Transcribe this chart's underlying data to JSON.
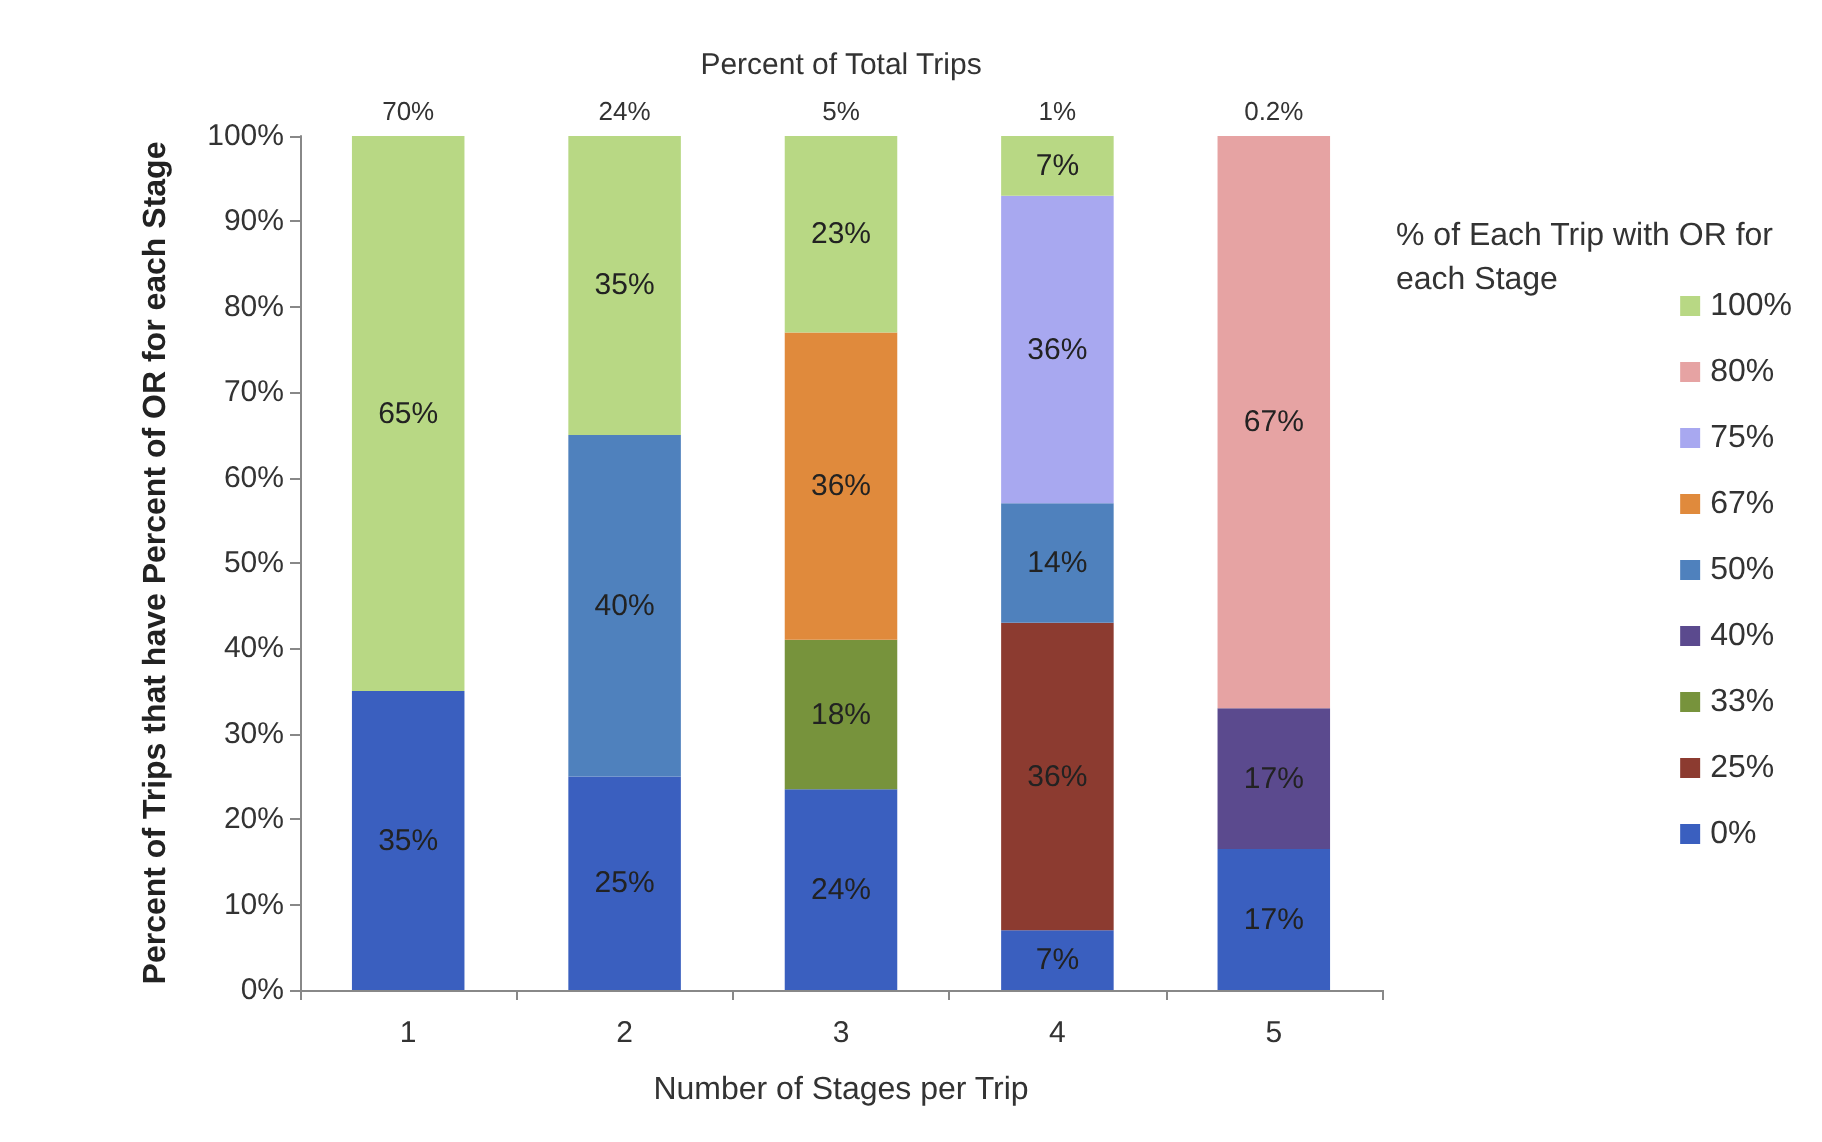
{
  "chart_data": {
    "type": "bar",
    "stacked": true,
    "xlabel": "Number of Stages per Trip",
    "ylabel": "Percent of Trips that have Percent of OR for each Stage",
    "x2label": "Percent of Total Trips",
    "legend_title": "% of Each Trip with OR for each Stage",
    "legend": "right",
    "grid": false,
    "categories": [
      "1",
      "2",
      "3",
      "4",
      "5"
    ],
    "ylim": [
      0,
      100
    ],
    "yticks": [
      {
        "value": 0,
        "label": "0%"
      },
      {
        "value": 10,
        "label": "10%"
      },
      {
        "value": 20,
        "label": "20%"
      },
      {
        "value": 30,
        "label": "30%"
      },
      {
        "value": 40,
        "label": "40%"
      },
      {
        "value": 50,
        "label": "50%"
      },
      {
        "value": 60,
        "label": "60%"
      },
      {
        "value": 70,
        "label": "70%"
      },
      {
        "value": 80,
        "label": "80%"
      },
      {
        "value": 90,
        "label": "90%"
      },
      {
        "value": 100,
        "label": "100%"
      }
    ],
    "annotations": [
      "70%",
      "24%",
      "5%",
      "1%",
      "0.2%"
    ],
    "series": [
      {
        "name": "0%",
        "color": "#3a5fbf",
        "values": [
          35,
          25,
          23.5,
          7,
          16.5
        ],
        "value_labels": [
          "35%",
          "25%",
          "24%",
          "7%",
          "17%"
        ]
      },
      {
        "name": "25%",
        "color": "#8c3b30",
        "values": [
          null,
          null,
          null,
          36,
          null
        ],
        "value_labels": [
          null,
          null,
          null,
          "36%",
          null
        ]
      },
      {
        "name": "33%",
        "color": "#77933c",
        "values": [
          null,
          null,
          17.5,
          null,
          null
        ],
        "value_labels": [
          null,
          null,
          "18%",
          null,
          null
        ]
      },
      {
        "name": "40%",
        "color": "#5b4a8e",
        "values": [
          null,
          null,
          null,
          null,
          16.5
        ],
        "value_labels": [
          null,
          null,
          null,
          null,
          "17%"
        ]
      },
      {
        "name": "50%",
        "color": "#4f81bd",
        "values": [
          null,
          40,
          null,
          14,
          null
        ],
        "value_labels": [
          null,
          "40%",
          null,
          "14%",
          null
        ]
      },
      {
        "name": "67%",
        "color": "#e08a3c",
        "values": [
          null,
          null,
          36,
          null,
          null
        ],
        "value_labels": [
          null,
          null,
          "36%",
          null,
          null
        ]
      },
      {
        "name": "75%",
        "color": "#a8a8f0",
        "values": [
          null,
          null,
          null,
          36,
          null
        ],
        "value_labels": [
          null,
          null,
          null,
          "36%",
          null
        ]
      },
      {
        "name": "80%",
        "color": "#e6a3a3",
        "values": [
          null,
          null,
          null,
          null,
          67
        ],
        "value_labels": [
          null,
          null,
          null,
          null,
          "67%"
        ]
      },
      {
        "name": "100%",
        "color": "#b8d884",
        "values": [
          65,
          35,
          23,
          7,
          null
        ],
        "value_labels": [
          "65%",
          "35%",
          "23%",
          "7%",
          null
        ]
      }
    ]
  }
}
